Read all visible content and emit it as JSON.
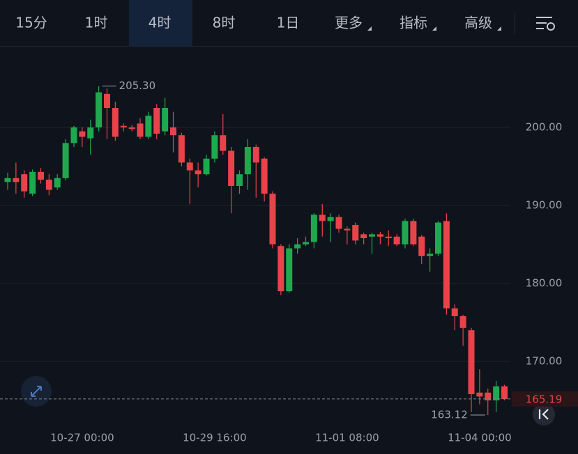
{
  "toolbar": {
    "tabs": [
      "15分",
      "1时",
      "4时",
      "8时",
      "1日",
      "更多",
      "指标",
      "高级"
    ],
    "active_tab": 2
  },
  "chart_data": {
    "type": "candlestick",
    "categories": [
      null,
      null,
      null,
      null,
      null,
      null,
      null,
      null,
      null,
      "10-27 00:00",
      null,
      null,
      null,
      null,
      null,
      null,
      null,
      null,
      null,
      null,
      null,
      null,
      null,
      null,
      null,
      "10-29 16:00",
      null,
      null,
      null,
      null,
      null,
      null,
      null,
      null,
      null,
      null,
      null,
      null,
      null,
      null,
      null,
      "11-01 08:00",
      null,
      null,
      null,
      null,
      null,
      null,
      null,
      null,
      null,
      null,
      null,
      null,
      null,
      null,
      null,
      "11-04 00:00",
      null,
      null,
      null
    ],
    "open": [
      193.0,
      193.5,
      194.0,
      191.5,
      194.3,
      193.3,
      192.3,
      193.5,
      198.0,
      199.5,
      198.6,
      200.0,
      204.3,
      202.5,
      200.2,
      200.0,
      200.5,
      198.8,
      202.5,
      199.5,
      200.0,
      199.0,
      195.5,
      194.5,
      194.0,
      196.0,
      199.0,
      197.0,
      192.5,
      194.0,
      197.5,
      196.0,
      191.5,
      184.8,
      179.0,
      184.5,
      185.0,
      185.3,
      188.8,
      188.0,
      188.5,
      187.0,
      187.5,
      186.3,
      186.0,
      186.3,
      186.0,
      186.0,
      185.0,
      188.0,
      186.0,
      183.5,
      183.8,
      188.0,
      176.8,
      175.8,
      174.0,
      166.0,
      166.0,
      165.0,
      166.8
    ],
    "high": [
      194.2,
      195.5,
      194.5,
      194.6,
      194.8,
      194.0,
      194.0,
      198.5,
      200.2,
      200.0,
      201.0,
      205.3,
      205.0,
      203.3,
      200.5,
      200.3,
      201.2,
      202.0,
      203.0,
      203.8,
      202.0,
      199.3,
      196.0,
      195.5,
      196.5,
      199.5,
      201.7,
      197.5,
      194.5,
      198.5,
      197.8,
      196.2,
      191.8,
      185.0,
      185.0,
      185.8,
      186.0,
      189.0,
      190.2,
      189.0,
      188.8,
      187.3,
      187.8,
      186.5,
      186.5,
      186.6,
      186.8,
      186.3,
      188.3,
      188.3,
      186.2,
      184.5,
      188.0,
      189.0,
      177.3,
      176.0,
      174.3,
      169.0,
      166.5,
      167.5,
      167.0
    ],
    "low": [
      192.0,
      191.5,
      191.0,
      191.2,
      192.8,
      191.3,
      192.0,
      193.2,
      197.5,
      197.5,
      196.5,
      199.5,
      198.5,
      198.3,
      199.5,
      199.5,
      198.5,
      198.5,
      198.5,
      199.0,
      196.8,
      195.0,
      190.2,
      192.3,
      193.8,
      195.5,
      196.5,
      189.0,
      191.5,
      192.0,
      191.0,
      190.5,
      184.5,
      178.5,
      178.8,
      183.8,
      184.8,
      184.5,
      186.0,
      185.3,
      186.5,
      185.0,
      185.0,
      185.0,
      183.8,
      185.0,
      184.8,
      184.8,
      184.5,
      184.8,
      182.5,
      181.5,
      183.5,
      176.0,
      174.0,
      172.0,
      163.5,
      164.5,
      163.12,
      163.5,
      165.0
    ],
    "close": [
      193.5,
      193.0,
      191.8,
      194.3,
      193.3,
      192.0,
      193.5,
      198.0,
      200.0,
      198.8,
      200.0,
      204.5,
      202.5,
      198.8,
      200.0,
      199.8,
      198.8,
      201.5,
      199.2,
      202.5,
      199.0,
      195.5,
      194.5,
      194.0,
      196.0,
      199.0,
      197.0,
      192.5,
      194.0,
      197.5,
      195.5,
      191.5,
      185.0,
      179.0,
      184.5,
      185.0,
      185.3,
      188.8,
      188.0,
      188.5,
      187.0,
      186.8,
      185.5,
      185.8,
      186.3,
      186.0,
      185.8,
      185.0,
      188.0,
      185.0,
      183.5,
      183.8,
      187.8,
      176.8,
      175.8,
      174.3,
      165.8,
      165.5,
      165.0,
      166.8,
      165.19
    ],
    "up_color": "#1fa94e",
    "down_color": "#e8434a",
    "ylim": [
      162,
      210
    ],
    "yticks": [
      {
        "value": 170,
        "label": "170.00"
      },
      {
        "value": 180,
        "label": "180.00"
      },
      {
        "value": 190,
        "label": "190.00"
      },
      {
        "value": 200,
        "label": "200.00"
      }
    ],
    "grid": true,
    "max_label": {
      "value": 205.3,
      "label": "205.30"
    },
    "min_label": {
      "value": 163.12,
      "label": "163.12"
    },
    "last_price": 165.19
  }
}
